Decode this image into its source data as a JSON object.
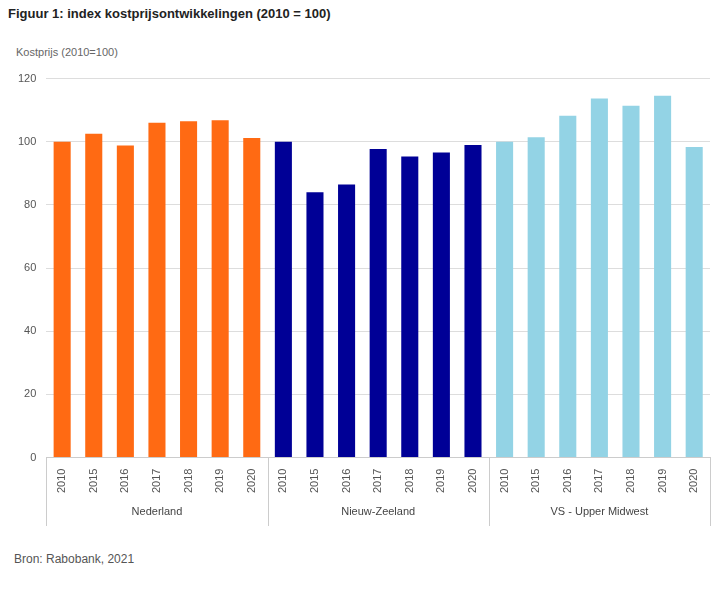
{
  "chart_data": {
    "type": "bar",
    "title": "Figuur 1: index kostprijsontwikkelingen (2010 = 100)",
    "y_label": "Kostprijs (2010=100)",
    "source": "Bron: Rabobank, 2021",
    "categories": [
      "2010",
      "2015",
      "2016",
      "2017",
      "2018",
      "2019",
      "2020",
      "2010",
      "2015",
      "2016",
      "2017",
      "2018",
      "2019",
      "2020",
      "2010",
      "2015",
      "2016",
      "2017",
      "2018",
      "2019",
      "2020"
    ],
    "series": [
      {
        "name": "Nederland",
        "color": "#ff6a13",
        "values": [
          100,
          102.5,
          98.8,
          106,
          106.5,
          106.8,
          101.2,
          null,
          null,
          null,
          null,
          null,
          null,
          null,
          null,
          null,
          null,
          null,
          null,
          null,
          null
        ]
      },
      {
        "name": "Nieuw-Zeeland",
        "color": "#000096",
        "values": [
          null,
          null,
          null,
          null,
          null,
          null,
          null,
          100,
          84,
          86.5,
          97.7,
          95.3,
          96.6,
          99,
          null,
          null,
          null,
          null,
          null,
          null,
          null
        ]
      },
      {
        "name": "VS - Upper Midwest",
        "color": "#93d3e5",
        "values": [
          null,
          null,
          null,
          null,
          null,
          null,
          null,
          null,
          null,
          null,
          null,
          null,
          null,
          null,
          100,
          101.4,
          108.2,
          113.7,
          111.4,
          114.6,
          98.3
        ]
      }
    ],
    "ylim": [
      0,
      120
    ],
    "yticks": [
      0,
      20,
      40,
      60,
      80,
      100,
      120
    ],
    "grid": true
  }
}
